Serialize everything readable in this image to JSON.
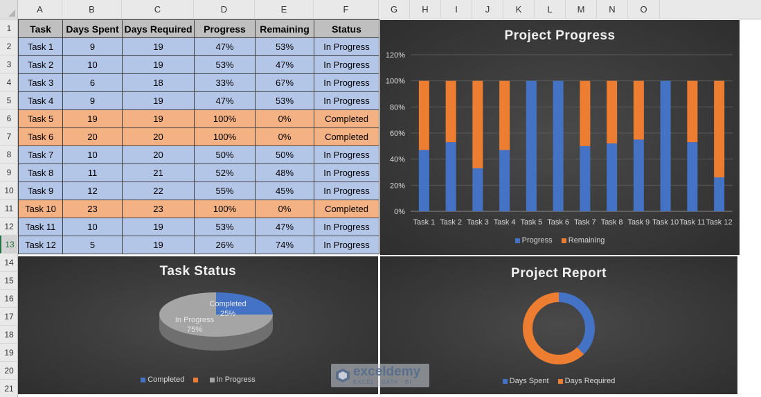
{
  "spreadsheet": {
    "columns": [
      "A",
      "B",
      "C",
      "D",
      "E",
      "F",
      "G",
      "H",
      "I",
      "J",
      "K",
      "L",
      "M",
      "N",
      "O"
    ],
    "rows": [
      "1",
      "2",
      "3",
      "4",
      "5",
      "6",
      "7",
      "8",
      "9",
      "10",
      "11",
      "12",
      "13",
      "14",
      "15",
      "16",
      "17",
      "18",
      "19",
      "20",
      "21"
    ],
    "selected_row": "13"
  },
  "table": {
    "headers": [
      "Task",
      "Days Spent",
      "Days Required",
      "Progress",
      "Remaining",
      "Status"
    ],
    "rows": [
      {
        "task": "Task 1",
        "spent": "9",
        "required": "19",
        "progress": "47%",
        "remaining": "53%",
        "status": "In Progress"
      },
      {
        "task": "Task 2",
        "spent": "10",
        "required": "19",
        "progress": "53%",
        "remaining": "47%",
        "status": "In Progress"
      },
      {
        "task": "Task 3",
        "spent": "6",
        "required": "18",
        "progress": "33%",
        "remaining": "67%",
        "status": "In Progress"
      },
      {
        "task": "Task 4",
        "spent": "9",
        "required": "19",
        "progress": "47%",
        "remaining": "53%",
        "status": "In Progress"
      },
      {
        "task": "Task 5",
        "spent": "19",
        "required": "19",
        "progress": "100%",
        "remaining": "0%",
        "status": "Completed"
      },
      {
        "task": "Task 6",
        "spent": "20",
        "required": "20",
        "progress": "100%",
        "remaining": "0%",
        "status": "Completed"
      },
      {
        "task": "Task 7",
        "spent": "10",
        "required": "20",
        "progress": "50%",
        "remaining": "50%",
        "status": "In Progress"
      },
      {
        "task": "Task 8",
        "spent": "11",
        "required": "21",
        "progress": "52%",
        "remaining": "48%",
        "status": "In Progress"
      },
      {
        "task": "Task 9",
        "spent": "12",
        "required": "22",
        "progress": "55%",
        "remaining": "45%",
        "status": "In Progress"
      },
      {
        "task": "Task 10",
        "spent": "23",
        "required": "23",
        "progress": "100%",
        "remaining": "0%",
        "status": "Completed"
      },
      {
        "task": "Task 11",
        "spent": "10",
        "required": "19",
        "progress": "53%",
        "remaining": "47%",
        "status": "In Progress"
      },
      {
        "task": "Task 12",
        "spent": "5",
        "required": "19",
        "progress": "26%",
        "remaining": "74%",
        "status": "In Progress"
      }
    ]
  },
  "colors": {
    "progress": "#4472c4",
    "remaining": "#ed7d31",
    "in_progress": "#a5a5a5"
  },
  "chart_data": [
    {
      "type": "bar",
      "stacked": true,
      "title": "Project Progress",
      "categories": [
        "Task 1",
        "Task 2",
        "Task 3",
        "Task 4",
        "Task 5",
        "Task 6",
        "Task 7",
        "Task 8",
        "Task 9",
        "Task 10",
        "Task 11",
        "Task 12"
      ],
      "series": [
        {
          "name": "Progress",
          "values": [
            47,
            53,
            33,
            47,
            100,
            100,
            50,
            52,
            55,
            100,
            53,
            26
          ]
        },
        {
          "name": "Remaining",
          "values": [
            53,
            47,
            67,
            53,
            0,
            0,
            50,
            48,
            45,
            0,
            47,
            74
          ]
        }
      ],
      "y_ticks": [
        "0%",
        "20%",
        "40%",
        "60%",
        "80%",
        "100%",
        "120%"
      ],
      "ylim": [
        0,
        120
      ],
      "grid": true,
      "legend": "bottom"
    },
    {
      "type": "pie",
      "style": "3d",
      "title": "Task Status",
      "slices": [
        {
          "name": "Completed",
          "value": 25,
          "label": "25%"
        },
        {
          "name": "In Progress",
          "value": 75,
          "label": "75%"
        }
      ],
      "legend": "bottom",
      "legend_entries": [
        "Completed",
        "In Progress"
      ]
    },
    {
      "type": "pie",
      "style": "doughnut",
      "title": "Project Report",
      "slices": [
        {
          "name": "Days Spent",
          "value": 144
        },
        {
          "name": "Days Required",
          "value": 238
        }
      ],
      "legend": "bottom"
    }
  ],
  "watermark": {
    "name": "exceldemy",
    "tagline": "EXCEL · DATA · BI"
  }
}
